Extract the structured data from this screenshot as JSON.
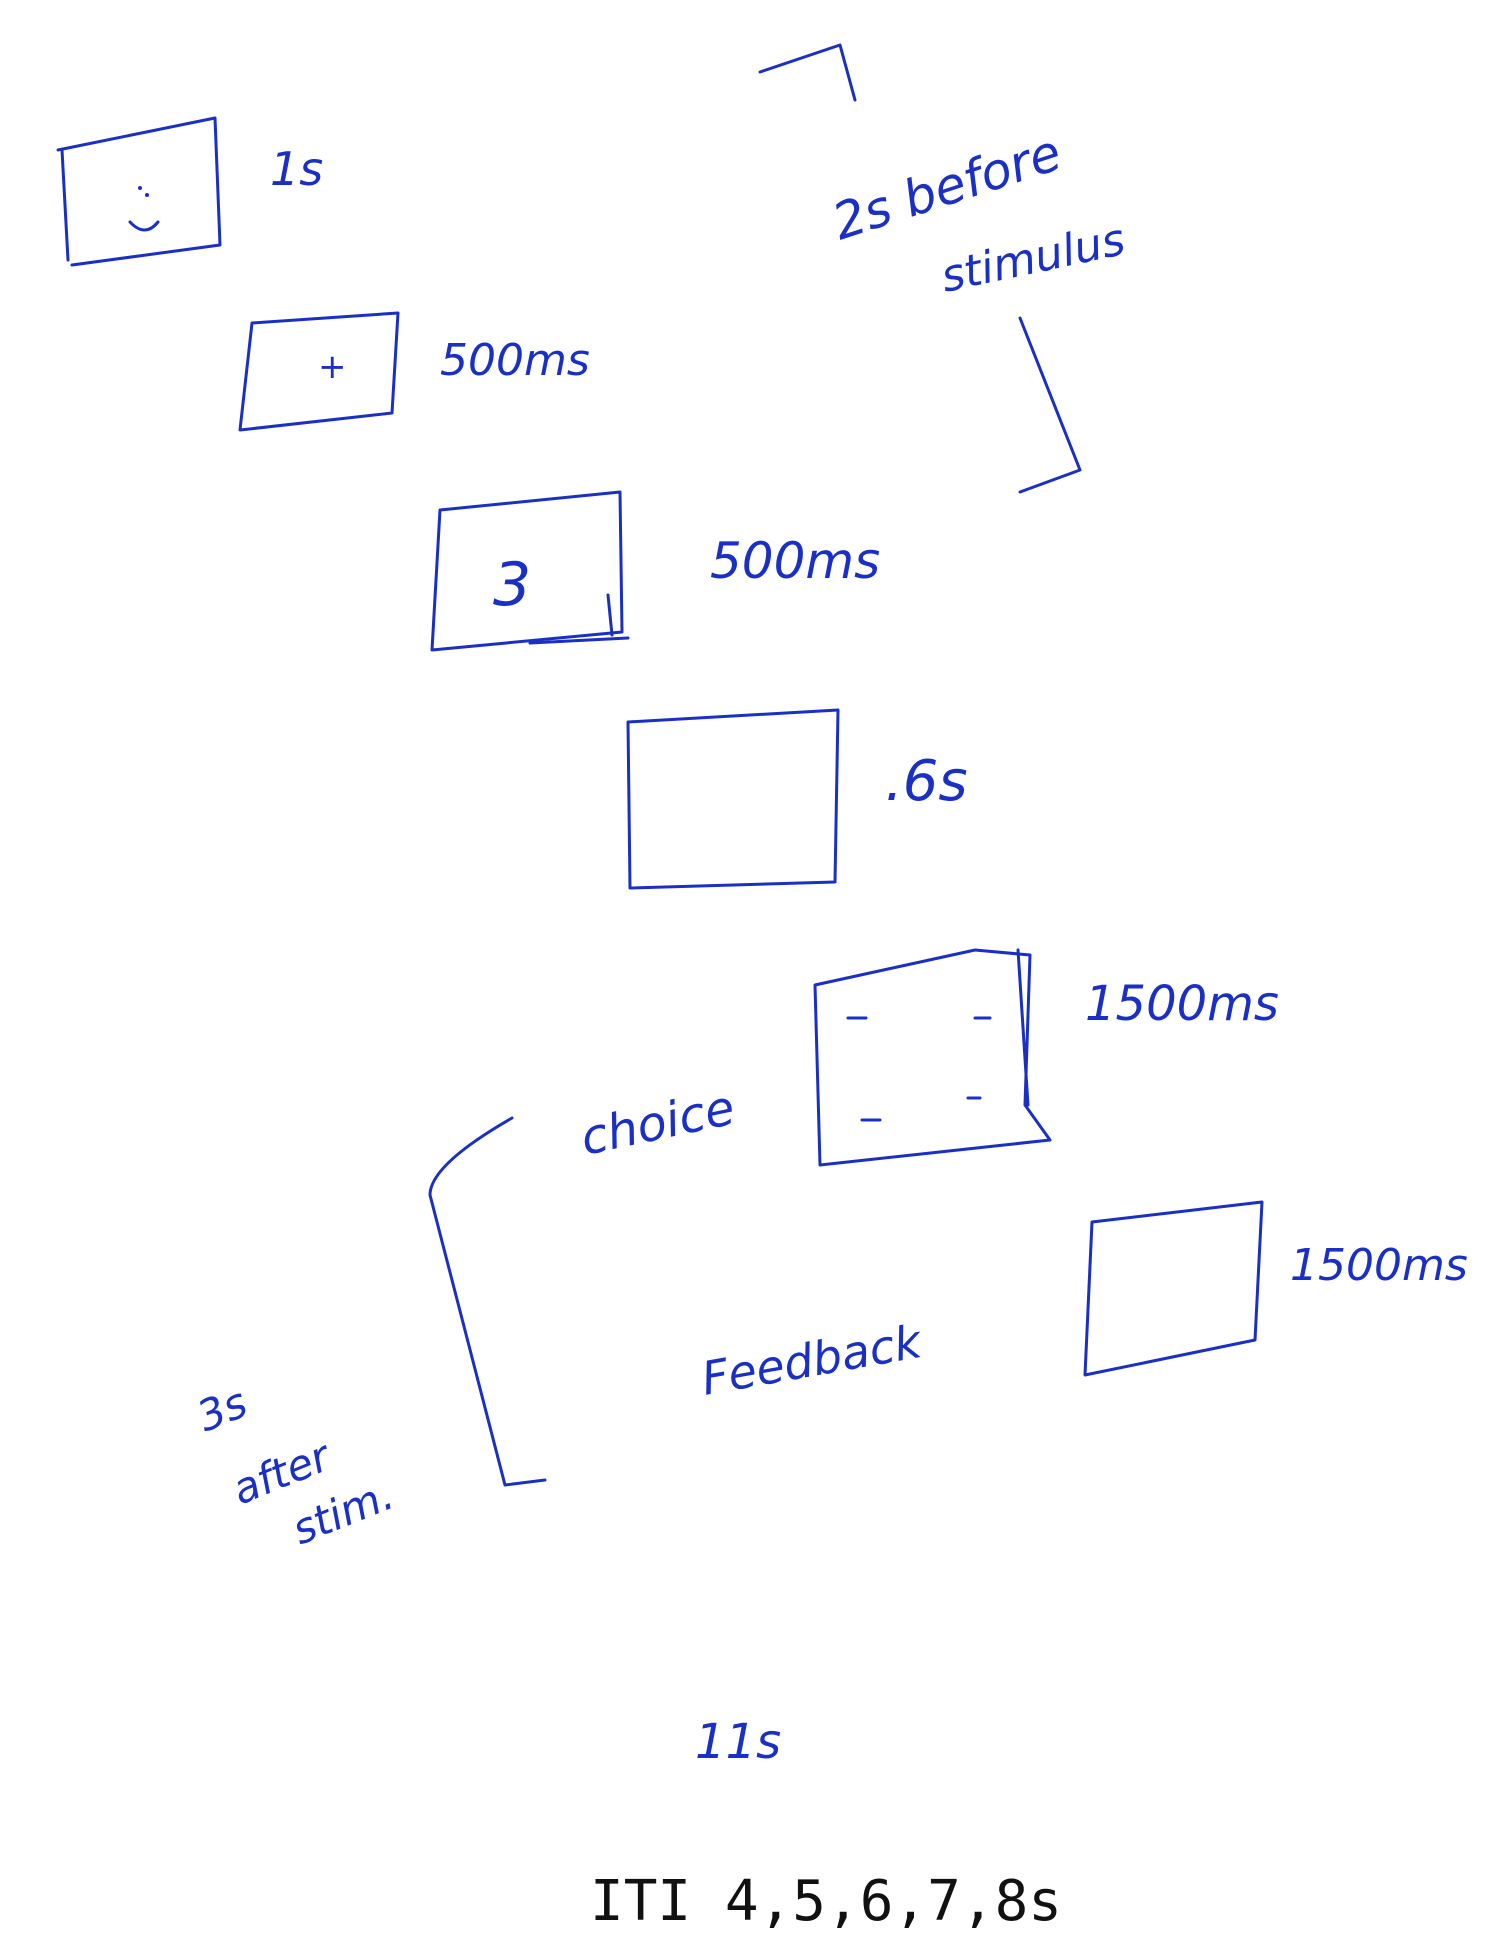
{
  "labels": {
    "smiley_duration": "1s",
    "fixation_symbol": "+",
    "fixation_duration": "500ms",
    "countdown_number": "3",
    "countdown_duration": "500ms",
    "stimulus_duration": ".6s",
    "choice_label": "choice",
    "choice_duration": "1500ms",
    "feedback_label": "Feedback",
    "feedback_duration": "1500ms",
    "before_stimulus_line1": "2s before",
    "before_stimulus_line2": "stimulus",
    "after_stim_line1": "3s",
    "after_stim_line2": "after",
    "after_stim_line3": "stim.",
    "total_duration": "11s",
    "iti": "ITI  4,5,6,7,8s"
  },
  "colors": {
    "ink": "#1a2fc4",
    "print": "#111111"
  },
  "icons": {
    "smiley": "smiley-face-icon"
  }
}
